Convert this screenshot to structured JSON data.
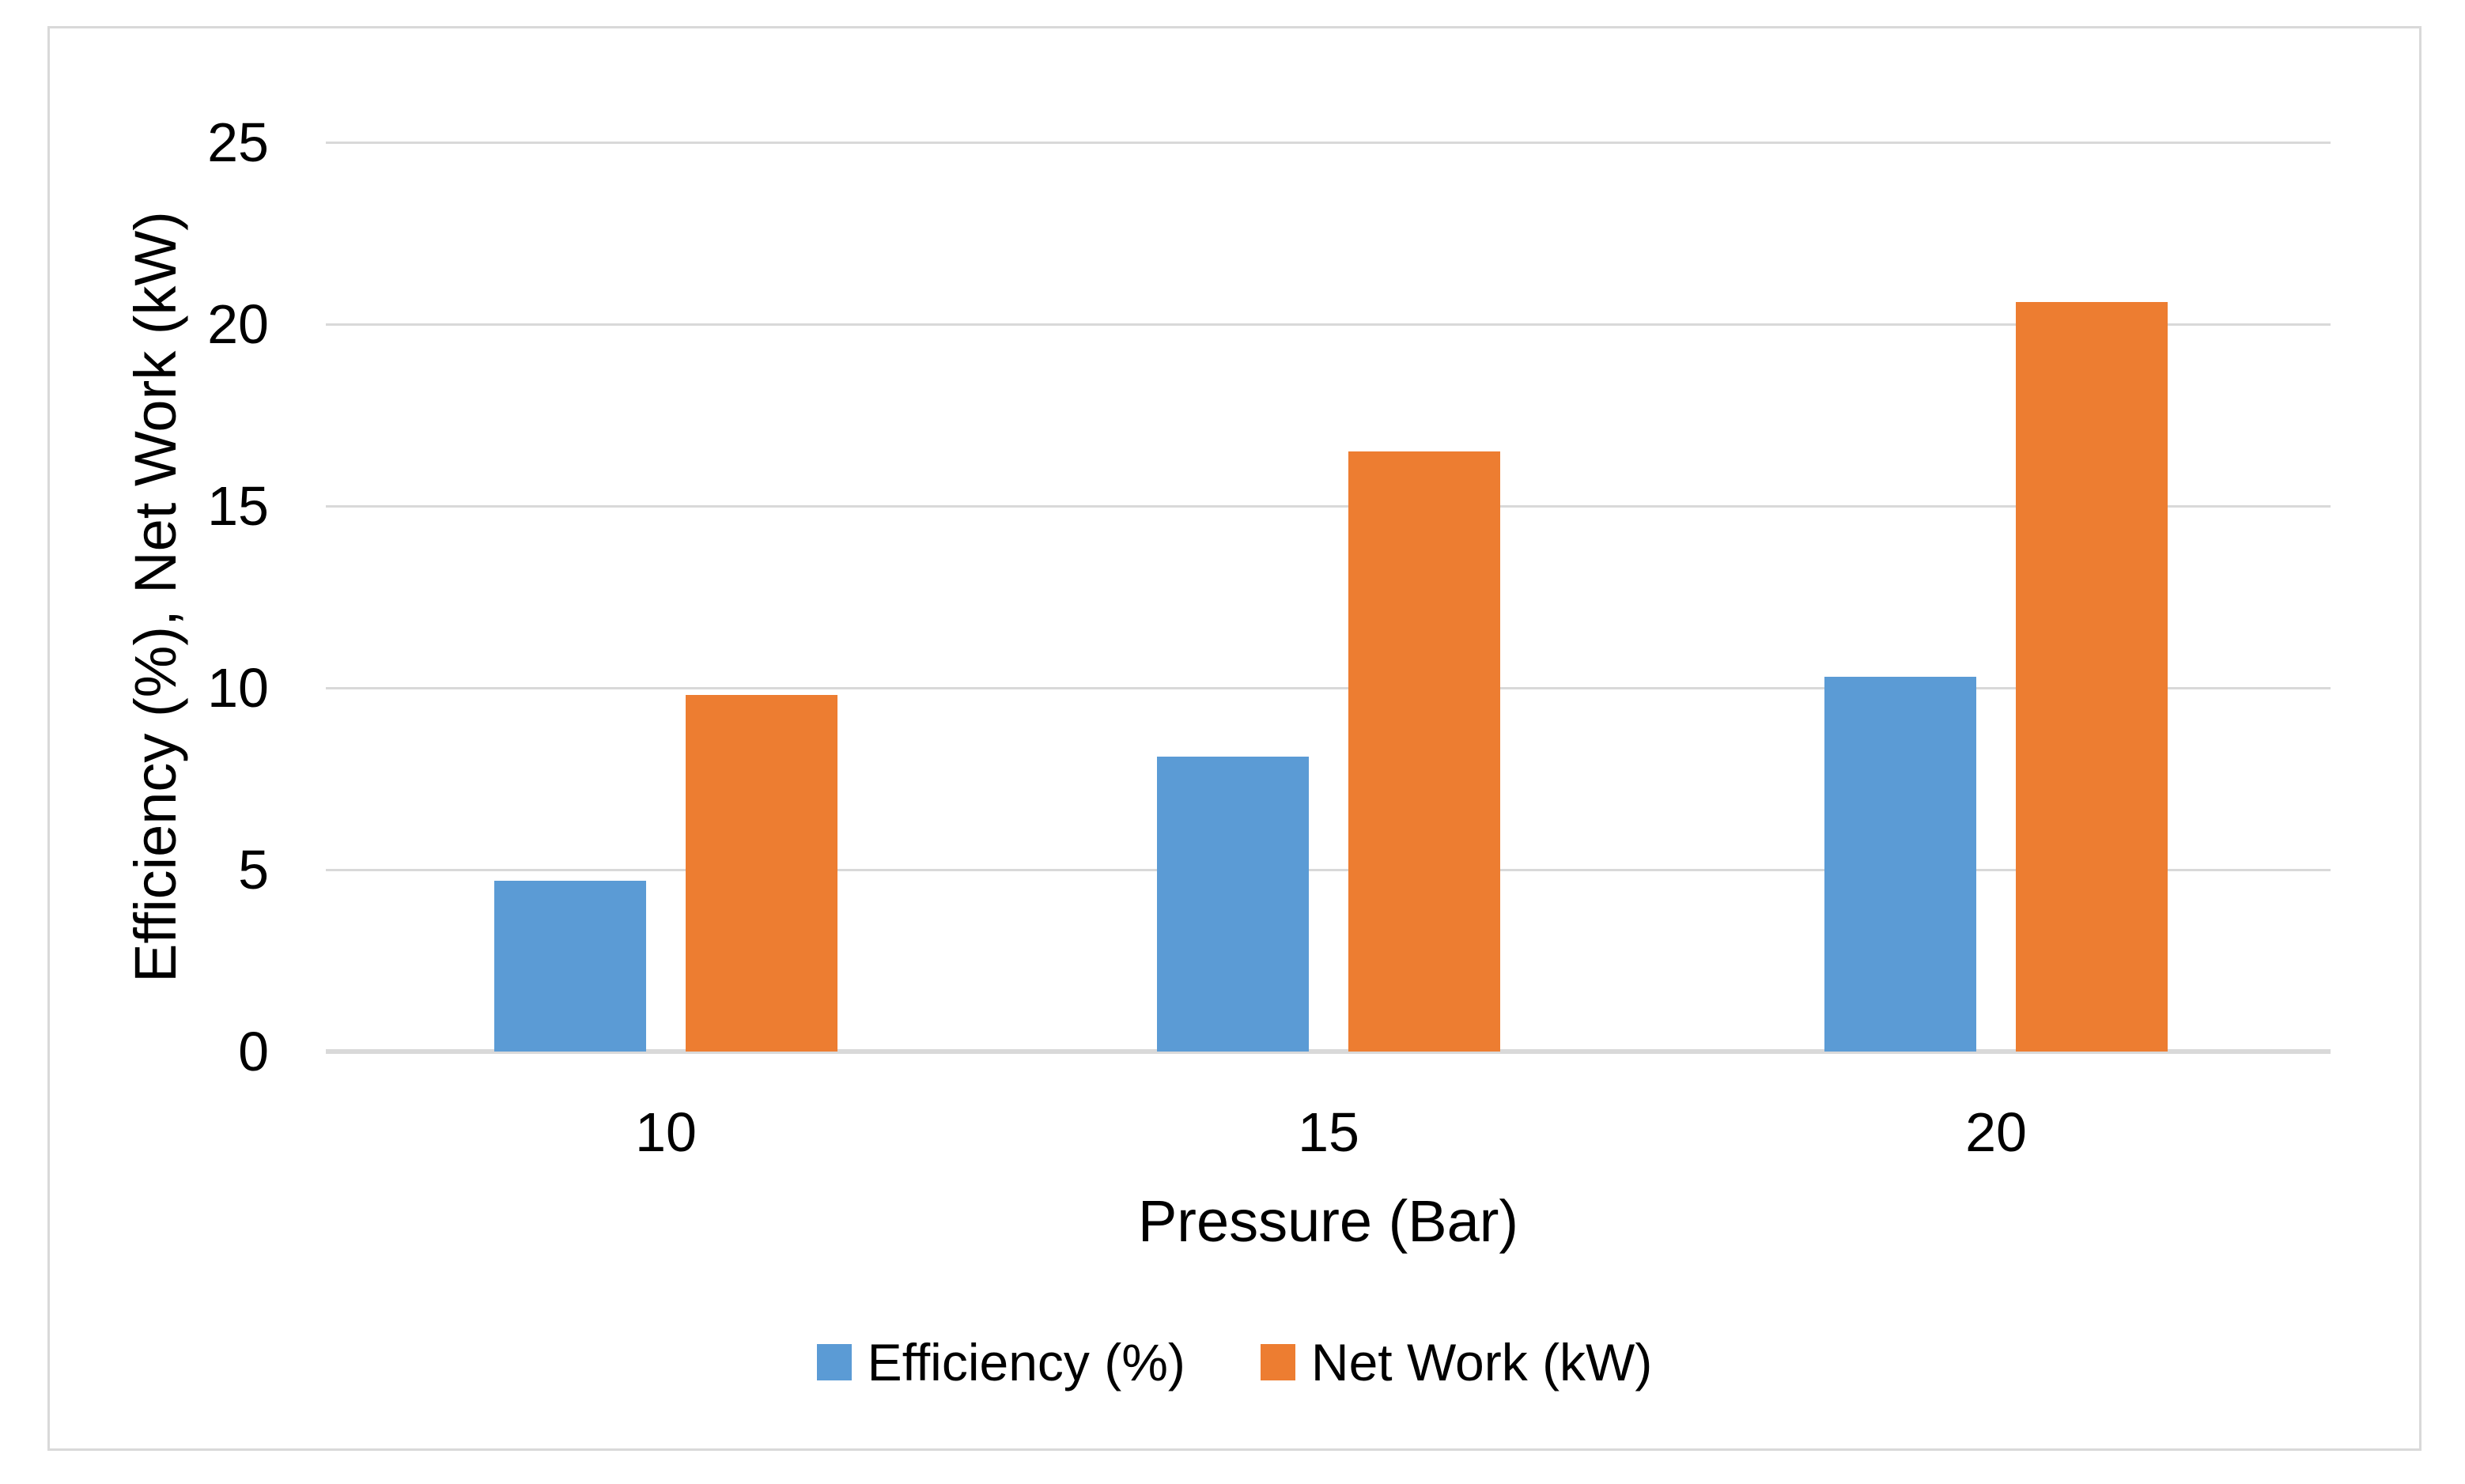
{
  "chart_data": {
    "type": "bar",
    "title": "",
    "categories": [
      "10",
      "15",
      "20"
    ],
    "series": [
      {
        "name": "Efficiency (%)",
        "color": "#5B9BD5",
        "values": [
          4.7,
          8.1,
          10.3
        ]
      },
      {
        "name": "Net Work (kW)",
        "color": "#ED7D31",
        "values": [
          9.8,
          16.5,
          20.6
        ]
      }
    ],
    "xlabel": "Pressure (Bar)",
    "ylabel": "Efficiency (%), Net Work (kW)",
    "ylim": [
      0,
      25
    ],
    "ytick_step": 5,
    "yticks": [
      0,
      5,
      10,
      15,
      20,
      25
    ],
    "grid": true,
    "legend_position": "bottom"
  },
  "colors": {
    "series_blue": "#5B9BD5",
    "series_orange": "#ED7D31",
    "gridline": "#D9D9D9",
    "axis_line": "#D9D9D9",
    "frame_border": "#D9D9D9",
    "text": "#000000",
    "background": "#ffffff"
  }
}
